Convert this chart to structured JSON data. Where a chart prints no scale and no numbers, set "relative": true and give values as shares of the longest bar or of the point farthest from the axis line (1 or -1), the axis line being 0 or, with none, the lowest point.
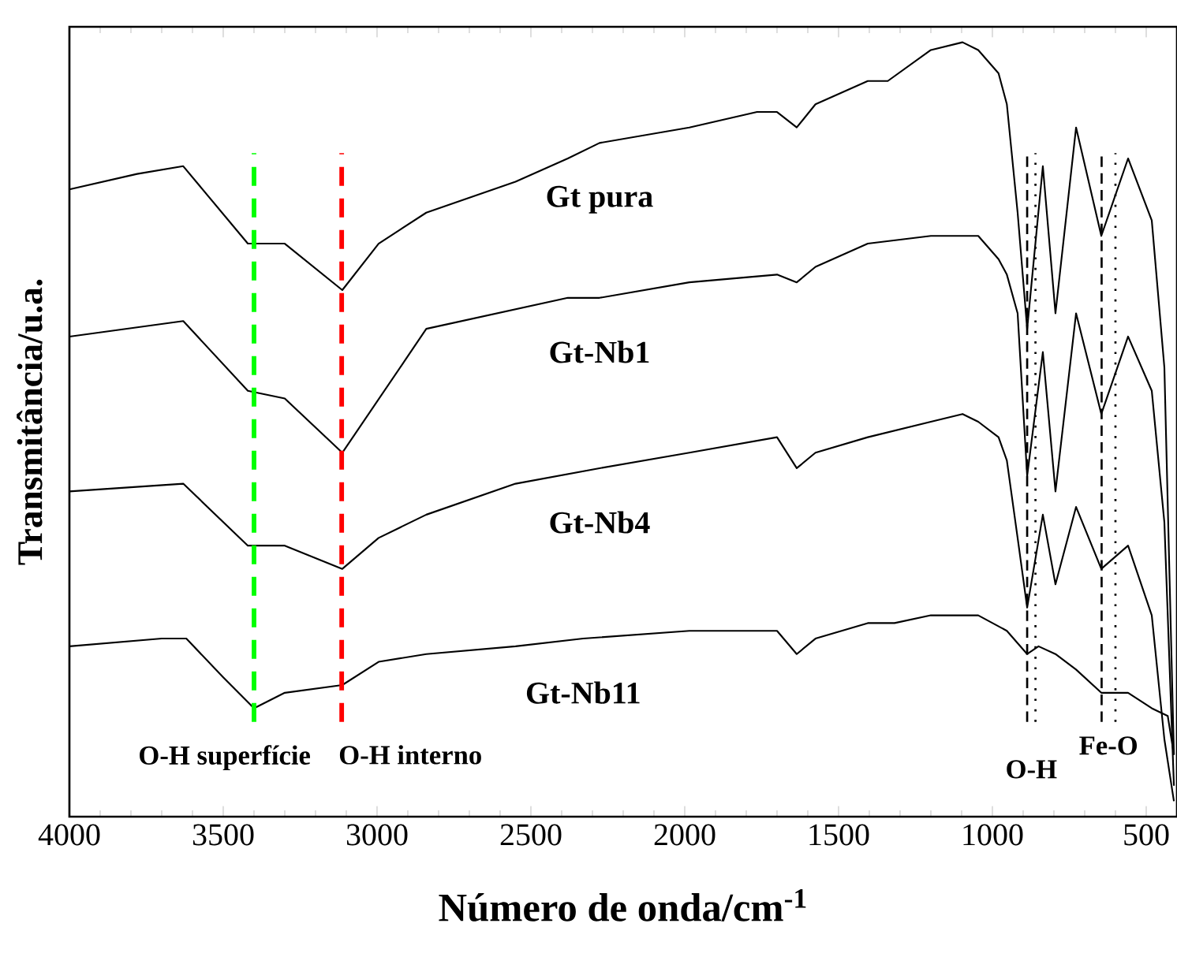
{
  "chart_data": {
    "type": "line",
    "relative": true,
    "xlabel": "Número de onda/cm$^{-1}$",
    "ylabel": "Transmitância/u.a.",
    "xlim": [
      4000,
      400
    ],
    "xticks": [
      4000,
      3500,
      3000,
      2500,
      2000,
      1500,
      1000,
      500
    ],
    "tick_labels": "x",
    "grid": false,
    "legend": false,
    "marker": "none",
    "line_style": "solid",
    "series": [
      {
        "name": "Gt pura",
        "color": "#000000",
        "x": [
          4000,
          3780,
          3630,
          3420,
          3300,
          3113,
          2995,
          2840,
          2550,
          2380,
          2277,
          1985,
          1765,
          1700,
          1636,
          1575,
          1405,
          1340,
          1200,
          1097,
          1046,
          980,
          953,
          918,
          887,
          836,
          795,
          728,
          646,
          559,
          482,
          441,
          410
        ],
        "values": [
          0.81,
          0.83,
          0.84,
          0.74,
          0.74,
          0.68,
          0.74,
          0.78,
          0.82,
          0.85,
          0.87,
          0.89,
          0.91,
          0.91,
          0.89,
          0.92,
          0.95,
          0.95,
          0.99,
          1.0,
          0.99,
          0.96,
          0.92,
          0.78,
          0.63,
          0.84,
          0.65,
          0.89,
          0.75,
          0.85,
          0.77,
          0.58,
          0.08
        ]
      },
      {
        "name": "Gt-Nb1",
        "color": "#000000",
        "x": [
          4000,
          3630,
          3420,
          3300,
          3113,
          2908,
          2840,
          2380,
          2277,
          1985,
          1700,
          1636,
          1575,
          1405,
          1200,
          1097,
          1046,
          980,
          953,
          918,
          887,
          836,
          795,
          728,
          646,
          559,
          482,
          441,
          410
        ],
        "values": [
          0.62,
          0.64,
          0.55,
          0.54,
          0.47,
          0.59,
          0.63,
          0.67,
          0.67,
          0.69,
          0.7,
          0.69,
          0.71,
          0.74,
          0.75,
          0.75,
          0.75,
          0.72,
          0.7,
          0.65,
          0.44,
          0.6,
          0.42,
          0.65,
          0.52,
          0.62,
          0.55,
          0.38,
          0.04
        ]
      },
      {
        "name": "Gt-Nb4",
        "color": "#000000",
        "x": [
          4000,
          3630,
          3420,
          3300,
          3113,
          2995,
          2840,
          2550,
          2277,
          1985,
          1700,
          1636,
          1575,
          1405,
          1200,
          1097,
          1046,
          980,
          953,
          918,
          887,
          836,
          795,
          728,
          646,
          559,
          482,
          441,
          410
        ],
        "values": [
          0.42,
          0.43,
          0.35,
          0.35,
          0.32,
          0.36,
          0.39,
          0.43,
          0.45,
          0.47,
          0.49,
          0.45,
          0.47,
          0.49,
          0.51,
          0.52,
          0.51,
          0.49,
          0.46,
          0.36,
          0.27,
          0.39,
          0.3,
          0.4,
          0.32,
          0.35,
          0.26,
          0.1,
          0.02
        ]
      },
      {
        "name": "Gt-Nb11",
        "color": "#000000",
        "x": [
          4000,
          3700,
          3620,
          3500,
          3400,
          3300,
          3113,
          2995,
          2840,
          2550,
          2330,
          1985,
          1700,
          1636,
          1575,
          1405,
          1318,
          1200,
          1046,
          953,
          887,
          850,
          795,
          728,
          646,
          559,
          482,
          430,
          410
        ],
        "values": [
          0.22,
          0.23,
          0.23,
          0.18,
          0.14,
          0.16,
          0.17,
          0.2,
          0.21,
          0.22,
          0.23,
          0.24,
          0.24,
          0.21,
          0.23,
          0.25,
          0.25,
          0.26,
          0.26,
          0.24,
          0.21,
          0.22,
          0.21,
          0.19,
          0.16,
          0.16,
          0.14,
          0.13,
          0.08
        ]
      }
    ],
    "ref_lines": [
      {
        "axis": "x",
        "value": 3400,
        "label": "O-H superfície",
        "color": "#00ff00",
        "line_style": "dashed"
      },
      {
        "axis": "x",
        "value": 3115,
        "label": "O-H interno",
        "color": "#ff0000",
        "line_style": "dashed"
      },
      {
        "axis": "x",
        "value": 887,
        "color": "#000000",
        "line_style": "dashed"
      },
      {
        "axis": "x",
        "value": 860,
        "color": "#000000",
        "line_style": "dotted"
      },
      {
        "axis": "x",
        "value": 645,
        "color": "#000000",
        "line_style": "dashed"
      },
      {
        "axis": "x",
        "value": 600,
        "color": "#000000",
        "line_style": "dotted"
      }
    ],
    "annotations": [
      "O-H",
      "Fe-O"
    ]
  }
}
